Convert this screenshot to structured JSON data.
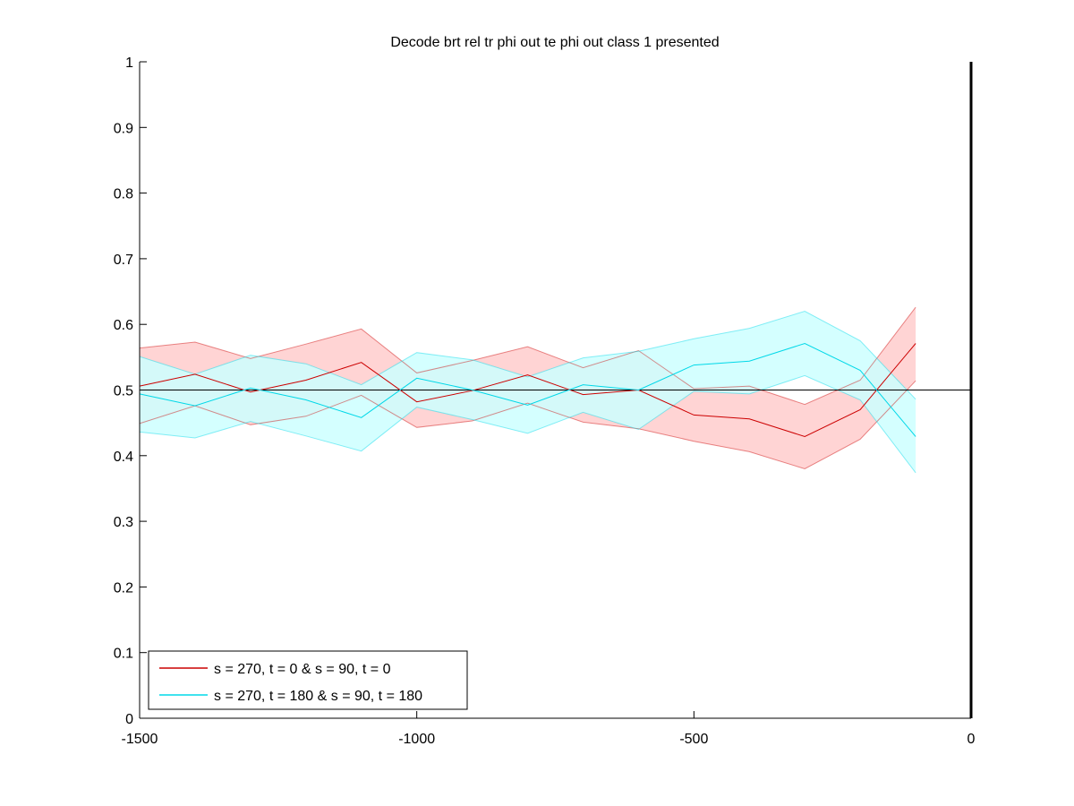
{
  "chart_data": {
    "type": "line",
    "title": "Decode brt rel tr phi out te phi out  class 1 presented",
    "xlabel": "",
    "ylabel": "",
    "xlim": [
      -1500,
      0
    ],
    "ylim": [
      0,
      1
    ],
    "xticks": [
      -1500,
      -1000,
      -500,
      0
    ],
    "xtick_labels": [
      "-1500",
      "-1000",
      "-500",
      "0"
    ],
    "yticks": [
      0,
      0.1,
      0.2,
      0.3,
      0.4,
      0.5,
      0.6,
      0.7,
      0.8,
      0.9,
      1
    ],
    "ytick_labels": [
      "0",
      "0.1",
      "0.2",
      "0.3",
      "0.4",
      "0.5",
      "0.6",
      "0.7",
      "0.8",
      "0.9",
      "1"
    ],
    "grid": false,
    "reference_line_y": 0.5,
    "event_line_x": 0,
    "legend_position": "bottom-left",
    "x": [
      -1500,
      -1400,
      -1300,
      -1200,
      -1100,
      -1000,
      -900,
      -800,
      -700,
      -600,
      -500,
      -400,
      -300,
      -200,
      -100
    ],
    "series": [
      {
        "name": "s = 270, t = 0 & s = 90, t = 0",
        "color": "#cc0000",
        "band_color": "#ffcccc",
        "mean": [
          0.506,
          0.524,
          0.497,
          0.515,
          0.542,
          0.482,
          0.499,
          0.523,
          0.493,
          0.5,
          0.462,
          0.456,
          0.429,
          0.47,
          0.571
        ],
        "upper": [
          0.564,
          0.573,
          0.548,
          0.57,
          0.593,
          0.526,
          0.545,
          0.566,
          0.534,
          0.56,
          0.502,
          0.506,
          0.478,
          0.515,
          0.626
        ],
        "lower": [
          0.449,
          0.476,
          0.447,
          0.46,
          0.492,
          0.443,
          0.453,
          0.48,
          0.451,
          0.441,
          0.422,
          0.406,
          0.38,
          0.425,
          0.514
        ]
      },
      {
        "name": "s = 270, t = 180 & s = 90, t = 180",
        "color": "#00d8e8",
        "band_color": "#ccffff",
        "mean": [
          0.494,
          0.476,
          0.503,
          0.485,
          0.458,
          0.518,
          0.5,
          0.477,
          0.508,
          0.5,
          0.538,
          0.544,
          0.571,
          0.53,
          0.429
        ],
        "upper": [
          0.551,
          0.524,
          0.553,
          0.54,
          0.508,
          0.557,
          0.546,
          0.52,
          0.549,
          0.559,
          0.578,
          0.594,
          0.62,
          0.575,
          0.486
        ],
        "lower": [
          0.436,
          0.427,
          0.452,
          0.43,
          0.407,
          0.474,
          0.455,
          0.434,
          0.466,
          0.44,
          0.498,
          0.494,
          0.522,
          0.485,
          0.374
        ]
      }
    ]
  }
}
